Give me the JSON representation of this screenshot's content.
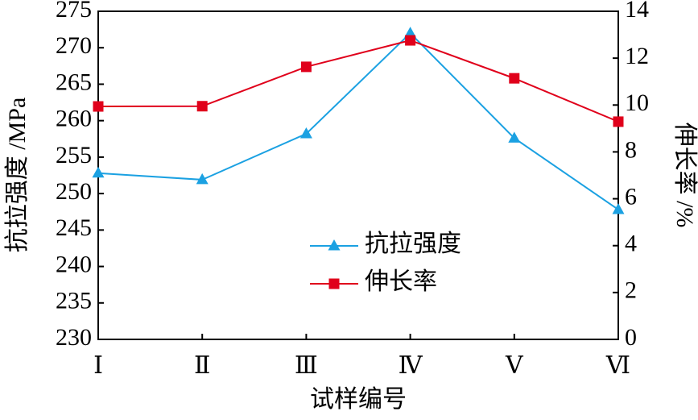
{
  "chart_data": {
    "type": "line",
    "xlabel": "试样编号",
    "ylabel": "抗拉强度 /MPa",
    "y2label": "伸长率 /%",
    "categories": [
      "Ⅰ",
      "Ⅱ",
      "Ⅲ",
      "Ⅳ",
      "Ⅴ",
      "Ⅵ"
    ],
    "series": [
      {
        "name": "抗拉强度",
        "color": "#1ba1e2",
        "marker": "triangle",
        "values": [
          252.8,
          251.9,
          258.2,
          272.0,
          257.6,
          247.8
        ]
      },
      {
        "name": "伸长率",
        "color": "#e0001b",
        "marker": "square",
        "axis": "y2",
        "values": [
          9.94,
          9.95,
          11.63,
          12.76,
          11.14,
          9.29
        ]
      }
    ],
    "ylim": [
      230,
      275
    ],
    "yticks": [
      230,
      235,
      240,
      245,
      250,
      255,
      260,
      265,
      270,
      275
    ],
    "y2lim": [
      0,
      14
    ],
    "y2ticks": [
      0,
      2,
      4,
      6,
      8,
      10,
      12,
      14
    ],
    "grid": false,
    "legend": "center"
  }
}
